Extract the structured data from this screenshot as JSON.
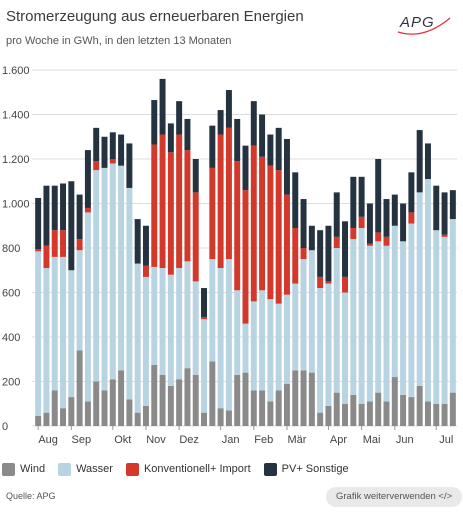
{
  "header": {
    "title": "Stromerzeugung aus erneuerbaren Energien",
    "subtitle": "pro Woche in GWh, in den letzten 13 Monaten",
    "logo_text": "APG"
  },
  "footer": {
    "source": "Quelle: APG",
    "share_label": "Grafik weiterverwenden </>"
  },
  "colors": {
    "wind": "#8a8a8a",
    "wasser": "#b8d4e3",
    "konventionell": "#d2392b",
    "pv": "#253341",
    "grid": "#dddddd",
    "text": "#333333",
    "logo_accent": "#e8323c"
  },
  "chart_data": {
    "type": "bar",
    "stacked": true,
    "ylim": [
      0,
      1600
    ],
    "yticks": [
      0,
      200,
      400,
      600,
      800,
      "1.000",
      "1.200",
      "1.400",
      "1.600"
    ],
    "grid": true,
    "legend_position": "bottom",
    "month_labels": [
      {
        "label": "Aug",
        "week": 0
      },
      {
        "label": "Sep",
        "week": 4
      },
      {
        "label": "Okt",
        "week": 9
      },
      {
        "label": "Nov",
        "week": 13
      },
      {
        "label": "Dez",
        "week": 17
      },
      {
        "label": "Jan",
        "week": 22
      },
      {
        "label": "Feb",
        "week": 26
      },
      {
        "label": "Mär",
        "week": 30
      },
      {
        "label": "Apr",
        "week": 35
      },
      {
        "label": "Mai",
        "week": 39
      },
      {
        "label": "Jun",
        "week": 43
      },
      {
        "label": "Jul",
        "week": 48
      },
      {
        "label": "Aug",
        "week": 52
      }
    ],
    "series": [
      {
        "name": "Wind",
        "key": "wind",
        "values": [
          45,
          60,
          160,
          80,
          130,
          340,
          110,
          200,
          160,
          210,
          250,
          120,
          60,
          90,
          275,
          230,
          180,
          210,
          260,
          230,
          60,
          290,
          80,
          70,
          230,
          240,
          160,
          160,
          110,
          160,
          190,
          250,
          250,
          240,
          60,
          90,
          150,
          100,
          140,
          100,
          110,
          150,
          110,
          220,
          140,
          130,
          180,
          110,
          100,
          100,
          150
        ]
      },
      {
        "name": "Wasser",
        "key": "wasser",
        "values": [
          740,
          650,
          600,
          680,
          570,
          450,
          850,
          950,
          1000,
          970,
          920,
          950,
          670,
          580,
          440,
          480,
          500,
          500,
          480,
          420,
          420,
          460,
          630,
          680,
          380,
          220,
          400,
          450,
          460,
          390,
          400,
          390,
          500,
          550,
          560,
          550,
          650,
          500,
          700,
          790,
          700,
          680,
          700,
          680,
          690,
          780,
          870,
          1000,
          780,
          750,
          780
        ]
      },
      {
        "name": "Konventionell+ Import",
        "key": "konv",
        "values": [
          10,
          100,
          120,
          120,
          0,
          50,
          20,
          40,
          0,
          20,
          0,
          0,
          0,
          50,
          550,
          600,
          550,
          600,
          500,
          400,
          10,
          410,
          600,
          590,
          580,
          600,
          700,
          600,
          600,
          600,
          450,
          250,
          50,
          0,
          50,
          10,
          50,
          70,
          50,
          50,
          10,
          40,
          40,
          0,
          0,
          50,
          0,
          0,
          0,
          10,
          0
        ]
      },
      {
        "name": "PV+ Sonstige",
        "key": "pv",
        "values": [
          230,
          270,
          200,
          210,
          400,
          200,
          260,
          150,
          140,
          120,
          140,
          200,
          200,
          180,
          200,
          250,
          130,
          150,
          140,
          150,
          130,
          190,
          110,
          170,
          190,
          200,
          200,
          190,
          140,
          190,
          250,
          250,
          220,
          110,
          210,
          250,
          200,
          250,
          230,
          180,
          180,
          330,
          170,
          140,
          170,
          180,
          280,
          160,
          200,
          190,
          130
        ]
      }
    ]
  }
}
